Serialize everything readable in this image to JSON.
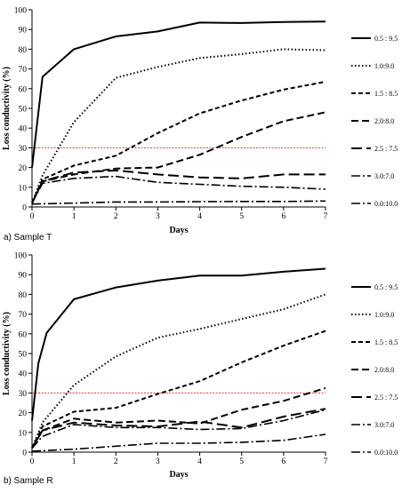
{
  "panels": [
    {
      "caption": "a) Sample T",
      "chart_data": {
        "type": "line",
        "xlabel": "Days",
        "ylabel": "Loss conductivity (%)",
        "xlim": [
          0,
          7
        ],
        "ylim": [
          0,
          100
        ],
        "x_ticks": [
          0,
          1,
          2,
          3,
          4,
          5,
          6,
          7
        ],
        "y_ticks": [
          0,
          10,
          20,
          30,
          40,
          50,
          60,
          70,
          80,
          90,
          100
        ],
        "grid": false,
        "legend_position": "right",
        "reference_line": {
          "y": 30,
          "color": "#e8302a",
          "style": "dotted"
        },
        "series": [
          {
            "name": "0.5 : 9.5",
            "dash": "solid",
            "x": [
              0,
              0.25,
              1,
              2,
              3,
              4,
              5,
              6,
              7
            ],
            "y": [
              20,
              66,
              80,
              86.5,
              89,
              93.5,
              93.3,
              93.8,
              94
            ]
          },
          {
            "name": "1.0:9.0",
            "dash": "dot",
            "x": [
              0,
              0.25,
              1,
              2,
              3,
              4,
              5,
              6,
              7
            ],
            "y": [
              2,
              16,
              43,
              65.5,
              71,
              75.5,
              77.5,
              80,
              79.5
            ]
          },
          {
            "name": "1.5 : 8.5",
            "dash": "short",
            "x": [
              0,
              0.25,
              1,
              2,
              3,
              4,
              5,
              6,
              7
            ],
            "y": [
              2,
              14,
              21,
              26,
              37.5,
              47.5,
              54,
              59.5,
              63.5
            ]
          },
          {
            "name": "2.0:8.0",
            "dash": "medium",
            "x": [
              0,
              0.25,
              1,
              2,
              3,
              4,
              5,
              6,
              7
            ],
            "y": [
              2,
              13,
              16.5,
              19.5,
              20,
              26.5,
              35.5,
              43.5,
              48
            ]
          },
          {
            "name": "2.5 : 7.5",
            "dash": "long",
            "x": [
              0,
              0.25,
              1,
              2,
              3,
              4,
              5,
              6,
              7
            ],
            "y": [
              2,
              13,
              17.5,
              18.5,
              16.5,
              15,
              14.5,
              16.5,
              16.5
            ]
          },
          {
            "name": "3.0:7.0",
            "dash": "dashdot",
            "x": [
              0,
              0.25,
              1,
              2,
              3,
              4,
              5,
              6,
              7
            ],
            "y": [
              2,
              12,
              14.5,
              15.5,
              12.5,
              11.5,
              10.5,
              10,
              9
            ]
          },
          {
            "name": "0.0:10.0",
            "dash": "dashdot",
            "x": [
              0,
              1,
              2,
              3,
              4,
              5,
              6,
              7
            ],
            "y": [
              1.5,
              2,
              2.5,
              2.5,
              2.7,
              2.8,
              2.8,
              3
            ]
          }
        ]
      }
    },
    {
      "caption": "b) Sample R",
      "chart_data": {
        "type": "line",
        "xlabel": "Days",
        "ylabel": "Loss conductivity (%)",
        "xlim": [
          0,
          7
        ],
        "ylim": [
          0,
          100
        ],
        "x_ticks": [
          0,
          1,
          2,
          3,
          4,
          5,
          6,
          7
        ],
        "y_ticks": [
          0,
          10,
          20,
          30,
          40,
          50,
          60,
          70,
          80,
          90,
          100
        ],
        "grid": false,
        "legend_position": "right",
        "reference_line": {
          "y": 30,
          "color": "#e8302a",
          "style": "dotted"
        },
        "series": [
          {
            "name": "0.5 : 9.5",
            "dash": "solid",
            "x": [
              0,
              0.15,
              0.35,
              1,
              2,
              3,
              4,
              5,
              6,
              7
            ],
            "y": [
              16,
              45,
              60.5,
              77.5,
              83.5,
              87,
              89.5,
              89.5,
              91.5,
              93
            ]
          },
          {
            "name": "1.0:9.0",
            "dash": "dot",
            "x": [
              0,
              0.25,
              1,
              2,
              3,
              4,
              5,
              6,
              7
            ],
            "y": [
              2,
              15,
              34,
              48.5,
              58,
              62.5,
              67.5,
              72.5,
              80
            ]
          },
          {
            "name": "1.5 : 8.5",
            "dash": "short",
            "x": [
              0,
              0.25,
              1,
              2,
              3,
              4,
              5,
              6,
              7
            ],
            "y": [
              2,
              13,
              20.5,
              22.5,
              29.5,
              36,
              45.5,
              54,
              61.5
            ]
          },
          {
            "name": "2.0:8.0",
            "dash": "medium",
            "x": [
              0,
              0.25,
              1,
              2,
              3,
              4,
              5,
              6,
              7
            ],
            "y": [
              2,
              11,
              17,
              15,
              16,
              14.5,
              21.5,
              26,
              32.5
            ]
          },
          {
            "name": "2.5 : 7.5",
            "dash": "long",
            "x": [
              0,
              0.25,
              1,
              2,
              3,
              4,
              5,
              6,
              7
            ],
            "y": [
              2,
              11,
              15,
              13.5,
              13,
              15.5,
              12.5,
              18,
              22
            ]
          },
          {
            "name": "3.0:7.0",
            "dash": "dashdot",
            "x": [
              0,
              0.25,
              1,
              2,
              3,
              4,
              5,
              6,
              7
            ],
            "y": [
              2,
              8,
              14,
              12.5,
              12.5,
              11.5,
              12,
              16,
              21.5
            ]
          },
          {
            "name": "0.0:10.0",
            "dash": "dashdot",
            "x": [
              0,
              1,
              2,
              3,
              4,
              5,
              6,
              7
            ],
            "y": [
              0.5,
              1.5,
              3,
              4.5,
              4.5,
              5,
              6,
              9
            ]
          }
        ]
      }
    }
  ],
  "colors": {
    "line": "#000000",
    "reference": "#e8302a",
    "axis": "#000000"
  }
}
